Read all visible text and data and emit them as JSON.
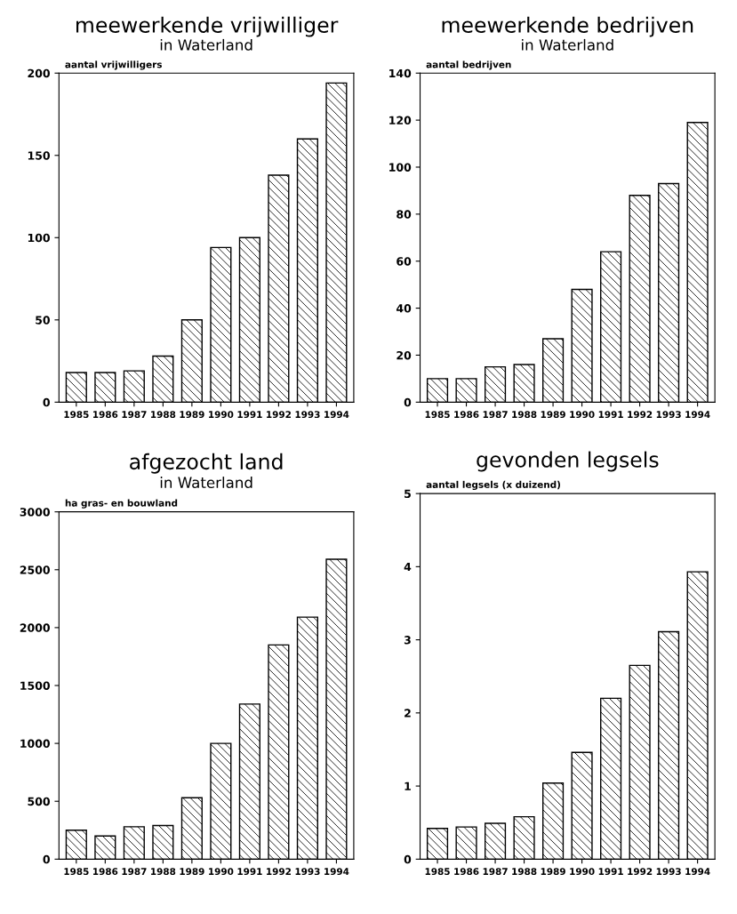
{
  "chart_data": [
    {
      "type": "bar",
      "title": "meewerkende vrijwilliger",
      "subtitle": "in Waterland",
      "ylabel": "aantal vrijwilligers",
      "categories": [
        "1985",
        "1986",
        "1987",
        "1988",
        "1989",
        "1990",
        "1991",
        "1992",
        "1993",
        "1994"
      ],
      "values": [
        18,
        18,
        19,
        28,
        50,
        94,
        100,
        138,
        160,
        194
      ],
      "color": "#000000",
      "ylim": [
        0,
        200
      ],
      "yticks": [
        0,
        50,
        100,
        150,
        200
      ],
      "grid": false
    },
    {
      "type": "bar",
      "title": "meewerkende bedrijven",
      "subtitle": "in Waterland",
      "ylabel": "aantal bedrijven",
      "categories": [
        "1985",
        "1986",
        "1987",
        "1988",
        "1989",
        "1990",
        "1991",
        "1992",
        "1993",
        "1994"
      ],
      "values": [
        10,
        10,
        15,
        16,
        27,
        48,
        64,
        88,
        93,
        119
      ],
      "color": "#000000",
      "ylim": [
        0,
        140
      ],
      "yticks": [
        0,
        20,
        40,
        60,
        80,
        100,
        120,
        140
      ],
      "grid": false
    },
    {
      "type": "bar",
      "title": "afgezocht land",
      "subtitle": "in Waterland",
      "ylabel": "ha gras- en bouwland",
      "categories": [
        "1985",
        "1986",
        "1987",
        "1988",
        "1989",
        "1990",
        "1991",
        "1992",
        "1993",
        "1994"
      ],
      "values": [
        250,
        200,
        280,
        290,
        530,
        1000,
        1340,
        1850,
        2090,
        2590
      ],
      "color": "#000000",
      "ylim": [
        0,
        3000
      ],
      "yticks": [
        0,
        500,
        1000,
        1500,
        2000,
        2500,
        3000
      ],
      "grid": false
    },
    {
      "type": "bar",
      "title": "gevonden legsels",
      "ylabel": "aantal legsels (x duizend)",
      "categories": [
        "1985",
        "1986",
        "1987",
        "1988",
        "1989",
        "1990",
        "1991",
        "1992",
        "1993",
        "1994"
      ],
      "values": [
        0.42,
        0.44,
        0.49,
        0.58,
        1.04,
        1.46,
        2.2,
        2.65,
        3.11,
        3.93
      ],
      "color": "#000000",
      "ylim": [
        0,
        5
      ],
      "yticks": [
        0,
        1,
        2,
        3,
        4,
        5
      ],
      "grid": false
    }
  ]
}
